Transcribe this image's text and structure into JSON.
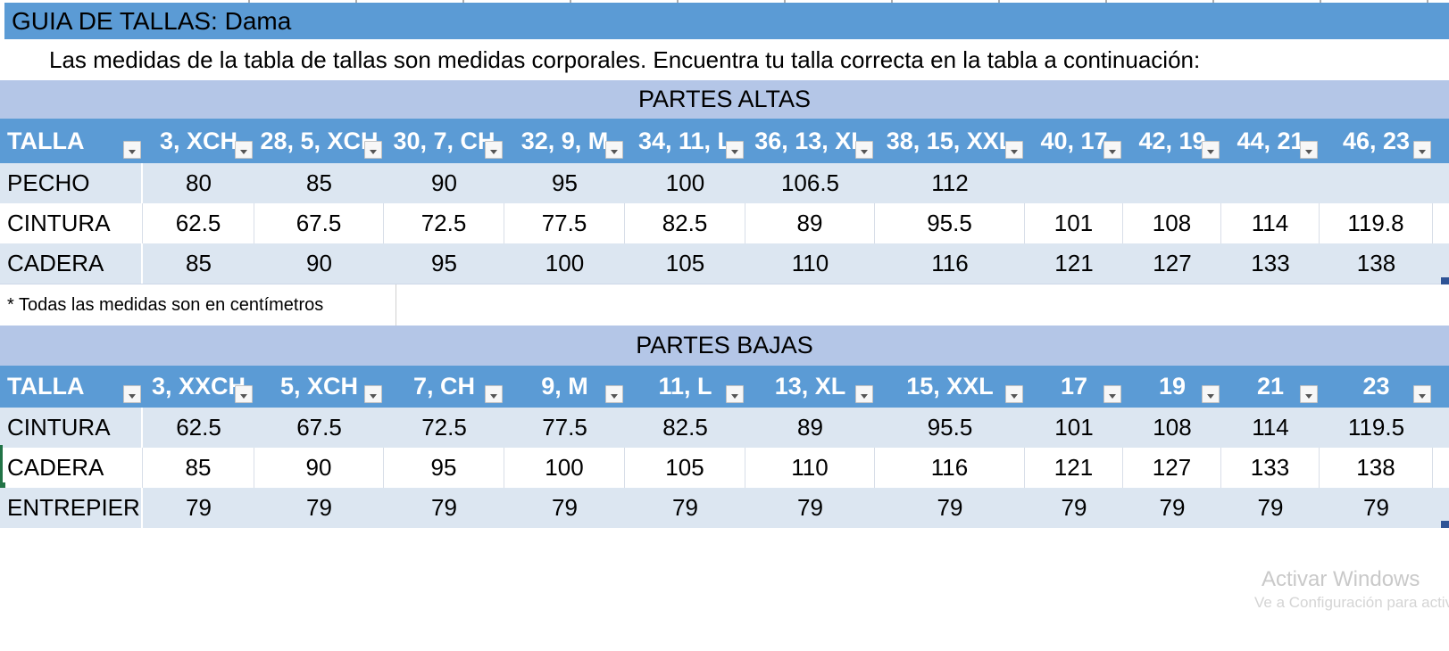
{
  "title": "GUIA DE TALLAS: Dama",
  "subtitle": "Las medidas de la tabla de tallas son medidas corporales. Encuentra tu talla correcta en la tabla a continuación:",
  "footnote": "* Todas las medidas son en centímetros",
  "watermark": {
    "line1": "Activar Windows",
    "line2": "Ve a Configuración para activar Windows."
  },
  "colors": {
    "header_blue": "#5b9bd5",
    "band_blue": "#b4c6e7",
    "row_light": "#dce6f1",
    "selection_green": "#217346",
    "handle_blue": "#2f5496"
  },
  "tables": [
    {
      "band": "PARTES ALTAS",
      "header": [
        "TALLA",
        "3, XCH",
        "28, 5, XCH",
        "30, 7, CH",
        "32, 9, M",
        "34, 11, L",
        "36, 13, XL",
        "38, 15, XXL",
        "40, 17",
        "42, 19",
        "44, 21",
        "46, 23"
      ],
      "rows": [
        {
          "label": "PECHO",
          "shade": "light",
          "values": [
            "80",
            "85",
            "90",
            "95",
            "100",
            "106.5",
            "112",
            "",
            "",
            "",
            ""
          ]
        },
        {
          "label": "CINTURA",
          "shade": "white",
          "values": [
            "62.5",
            "67.5",
            "72.5",
            "77.5",
            "82.5",
            "89",
            "95.5",
            "101",
            "108",
            "114",
            "119.8"
          ]
        },
        {
          "label": "CADERA",
          "shade": "light",
          "values": [
            "85",
            "90",
            "95",
            "100",
            "105",
            "110",
            "116",
            "121",
            "127",
            "133",
            "138"
          ]
        }
      ]
    },
    {
      "band": "PARTES BAJAS",
      "header": [
        "TALLA",
        "3, XXCH",
        "5, XCH",
        "7, CH",
        "9, M",
        "11, L",
        "13, XL",
        "15, XXL",
        "17",
        "19",
        "21",
        "23"
      ],
      "rows": [
        {
          "label": "CINTURA",
          "shade": "light",
          "values": [
            "62.5",
            "67.5",
            "72.5",
            "77.5",
            "82.5",
            "89",
            "95.5",
            "101",
            "108",
            "114",
            "119.5"
          ]
        },
        {
          "label": "CADERA",
          "shade": "white",
          "values": [
            "85",
            "90",
            "95",
            "100",
            "105",
            "110",
            "116",
            "121",
            "127",
            "133",
            "138"
          ]
        },
        {
          "label": "ENTREPIERNA",
          "shade": "light",
          "values": [
            "79",
            "79",
            "79",
            "79",
            "79",
            "79",
            "79",
            "79",
            "79",
            "79",
            "79"
          ]
        }
      ]
    }
  ]
}
